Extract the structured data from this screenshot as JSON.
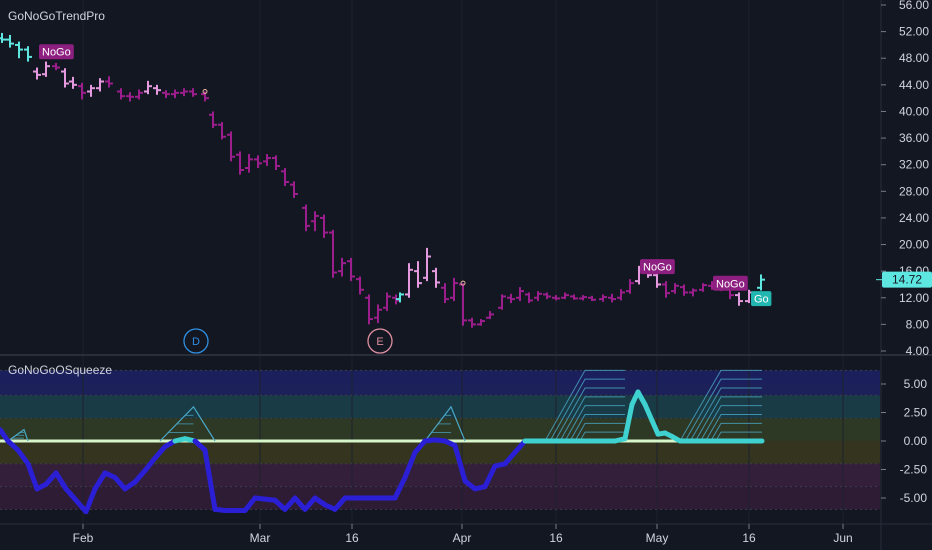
{
  "colors": {
    "background": "#131722",
    "grid": "#2a2e39",
    "axis_text": "#d1d4dc",
    "strong_nogo": "#9b1e8c",
    "weak_nogo": "#e59ae0",
    "nogo_tag": "#8c1f80",
    "go_tag": "#21b6b0",
    "price_tag": "#5ee6e0",
    "squeeze_line": "#2b1fd6",
    "squeeze_zero": "#d6f5c8",
    "squeeze_wave": "#3fd0d0"
  },
  "price_chart": {
    "title": "GoNoGoTrendPro",
    "y_ticks": [
      "56.00",
      "52.00",
      "48.00",
      "44.00",
      "40.00",
      "36.00",
      "32.00",
      "28.00",
      "24.00",
      "20.00",
      "16.00",
      "12.00",
      "8.00",
      "4.00"
    ],
    "current_price": "14.72",
    "tags": [
      {
        "text": "NoGo",
        "x": 40,
        "price": 48.9,
        "type": "nogo"
      },
      {
        "text": "NoGo",
        "x": 641,
        "price": 16.6,
        "type": "nogo"
      },
      {
        "text": "NoGo",
        "x": 714,
        "price": 14.1,
        "type": "nogo"
      },
      {
        "text": "Go",
        "x": 752,
        "price": 11.8,
        "type": "go"
      }
    ],
    "event_markers": [
      {
        "text": "D",
        "x": 196,
        "color": "#2f8fe0"
      },
      {
        "text": "E",
        "x": 380,
        "color": "#e08fa0"
      }
    ]
  },
  "oscillator": {
    "title": "GoNoGoOSqueeze",
    "y_ticks": [
      "5.00",
      "2.50",
      "0.00",
      "-2.50",
      "-5.00"
    ],
    "ylim": [
      -7,
      6.2
    ]
  },
  "x_axis": {
    "labels": [
      {
        "text": "Feb",
        "x": 83
      },
      {
        "text": "Mar",
        "x": 260
      },
      {
        "text": "16",
        "x": 352
      },
      {
        "text": "Apr",
        "x": 462
      },
      {
        "text": "16",
        "x": 556
      },
      {
        "text": "May",
        "x": 657
      },
      {
        "text": "16",
        "x": 749
      },
      {
        "text": "Jun",
        "x": 843
      }
    ]
  },
  "chart_data": [
    {
      "type": "ohlc",
      "title": "GoNoGoTrendPro",
      "ylim": [
        4,
        57
      ],
      "bars": [
        {
          "x": 2,
          "o": 51,
          "h": 51.8,
          "l": 50.3,
          "c": 50.8,
          "g": "go"
        },
        {
          "x": 10,
          "o": 50.8,
          "h": 51.5,
          "l": 49.6,
          "c": 50.2,
          "g": "go"
        },
        {
          "x": 19,
          "o": 50,
          "h": 50.5,
          "l": 48,
          "c": 49.3,
          "g": "go"
        },
        {
          "x": 28,
          "o": 49.3,
          "h": 49.8,
          "l": 47.5,
          "c": 48.2,
          "g": "go"
        },
        {
          "x": 37,
          "o": 46,
          "h": 46.6,
          "l": 44.8,
          "c": 45.5,
          "g": "weak"
        },
        {
          "x": 46,
          "o": 45.6,
          "h": 47.5,
          "l": 45.2,
          "c": 46.8,
          "g": "weak"
        },
        {
          "x": 56,
          "o": 46.8,
          "h": 47.3,
          "l": 46.2,
          "c": 46.6,
          "g": "nogo"
        },
        {
          "x": 65,
          "o": 46,
          "h": 46.5,
          "l": 43.6,
          "c": 44.2,
          "g": "weak"
        },
        {
          "x": 73,
          "o": 44.5,
          "h": 45.2,
          "l": 43.4,
          "c": 44,
          "g": "weak"
        },
        {
          "x": 82,
          "o": 43.8,
          "h": 44.3,
          "l": 41.8,
          "c": 42.8,
          "g": "nogo"
        },
        {
          "x": 91,
          "o": 43,
          "h": 44,
          "l": 42.2,
          "c": 43.5,
          "g": "weak"
        },
        {
          "x": 100,
          "o": 43.5,
          "h": 45,
          "l": 43,
          "c": 44.5,
          "g": "weak"
        },
        {
          "x": 109,
          "o": 44.5,
          "h": 45.3,
          "l": 43.6,
          "c": 44.2,
          "g": "nogo"
        },
        {
          "x": 121,
          "o": 43,
          "h": 43.5,
          "l": 41.8,
          "c": 42.3,
          "g": "nogo"
        },
        {
          "x": 130,
          "o": 42.3,
          "h": 42.9,
          "l": 41.5,
          "c": 42.2,
          "g": "nogo"
        },
        {
          "x": 139,
          "o": 42.2,
          "h": 43.3,
          "l": 41.8,
          "c": 42.8,
          "g": "nogo"
        },
        {
          "x": 148,
          "o": 43,
          "h": 44.6,
          "l": 42.6,
          "c": 43.8,
          "g": "weak"
        },
        {
          "x": 157,
          "o": 43.5,
          "h": 44,
          "l": 42.5,
          "c": 43.2,
          "g": "weak"
        },
        {
          "x": 166,
          "o": 42.8,
          "h": 43.2,
          "l": 42,
          "c": 42.6,
          "g": "nogo"
        },
        {
          "x": 175,
          "o": 42.6,
          "h": 43.3,
          "l": 42,
          "c": 42.8,
          "g": "nogo"
        },
        {
          "x": 184,
          "o": 42.8,
          "h": 43.5,
          "l": 42.3,
          "c": 43,
          "g": "nogo"
        },
        {
          "x": 193,
          "o": 43,
          "h": 43.5,
          "l": 42.2,
          "c": 42.6,
          "g": "nogo"
        },
        {
          "x": 205,
          "o": 42.6,
          "h": 43,
          "l": 41.5,
          "c": 42,
          "g": "nogo"
        },
        {
          "x": 213,
          "o": 39.5,
          "h": 40,
          "l": 37.5,
          "c": 38,
          "g": "nogo"
        },
        {
          "x": 222,
          "o": 38,
          "h": 38.4,
          "l": 35.8,
          "c": 36.2,
          "g": "nogo"
        },
        {
          "x": 231,
          "o": 36.5,
          "h": 37,
          "l": 32.5,
          "c": 33.2,
          "g": "nogo"
        },
        {
          "x": 240,
          "o": 33.5,
          "h": 34,
          "l": 30.5,
          "c": 31.2,
          "g": "nogo"
        },
        {
          "x": 249,
          "o": 31.5,
          "h": 33.6,
          "l": 30.8,
          "c": 32.8,
          "g": "nogo"
        },
        {
          "x": 258,
          "o": 32.8,
          "h": 33.4,
          "l": 31.5,
          "c": 32.2,
          "g": "nogo"
        },
        {
          "x": 267,
          "o": 32.5,
          "h": 33.6,
          "l": 31.8,
          "c": 33,
          "g": "nogo"
        },
        {
          "x": 276,
          "o": 33,
          "h": 33.4,
          "l": 31.2,
          "c": 31.8,
          "g": "nogo"
        },
        {
          "x": 285,
          "o": 31,
          "h": 31.5,
          "l": 28.8,
          "c": 29.4,
          "g": "nogo"
        },
        {
          "x": 294,
          "o": 29,
          "h": 29.5,
          "l": 27,
          "c": 27.6,
          "g": "nogo"
        },
        {
          "x": 306,
          "o": 25.5,
          "h": 26,
          "l": 22,
          "c": 22.8,
          "g": "nogo"
        },
        {
          "x": 315,
          "o": 23.5,
          "h": 25,
          "l": 22,
          "c": 24.3,
          "g": "nogo"
        },
        {
          "x": 324,
          "o": 24,
          "h": 24.5,
          "l": 21,
          "c": 21.8,
          "g": "nogo"
        },
        {
          "x": 333,
          "o": 21.8,
          "h": 22.2,
          "l": 15,
          "c": 15.8,
          "g": "nogo"
        },
        {
          "x": 342,
          "o": 16,
          "h": 18,
          "l": 15.2,
          "c": 17.2,
          "g": "nogo"
        },
        {
          "x": 351,
          "o": 17.5,
          "h": 18,
          "l": 14.5,
          "c": 15.2,
          "g": "nogo"
        },
        {
          "x": 360,
          "o": 14.8,
          "h": 15.2,
          "l": 12.5,
          "c": 13.2,
          "g": "nogo"
        },
        {
          "x": 369,
          "o": 12,
          "h": 12.5,
          "l": 8,
          "c": 8.8,
          "g": "nogo"
        },
        {
          "x": 378,
          "o": 9,
          "h": 11,
          "l": 8.2,
          "c": 10.2,
          "g": "nogo"
        },
        {
          "x": 387,
          "o": 10.5,
          "h": 12.8,
          "l": 10,
          "c": 12.2,
          "g": "nogo"
        },
        {
          "x": 396,
          "o": 12,
          "h": 12.5,
          "l": 11,
          "c": 11.6,
          "g": "nogo"
        },
        {
          "x": 400,
          "o": 11.8,
          "h": 12.8,
          "l": 11.3,
          "c": 12.5,
          "g": "go"
        },
        {
          "x": 409,
          "o": 12.5,
          "h": 17.2,
          "l": 12,
          "c": 16.2,
          "g": "weak"
        },
        {
          "x": 418,
          "o": 16,
          "h": 17.5,
          "l": 13.5,
          "c": 14.2,
          "g": "weak"
        },
        {
          "x": 427,
          "o": 15,
          "h": 19.5,
          "l": 14.5,
          "c": 18.2,
          "g": "weak"
        },
        {
          "x": 436,
          "o": 16,
          "h": 16.5,
          "l": 13.5,
          "c": 14.3,
          "g": "weak"
        },
        {
          "x": 445,
          "o": 13.5,
          "h": 14.2,
          "l": 11.2,
          "c": 11.8,
          "g": "nogo"
        },
        {
          "x": 454,
          "o": 12,
          "h": 15,
          "l": 11.5,
          "c": 14.2,
          "g": "nogo"
        },
        {
          "x": 463,
          "o": 14,
          "h": 14.2,
          "l": 7.8,
          "c": 8.6,
          "g": "nogo"
        },
        {
          "x": 472,
          "o": 8.6,
          "h": 9,
          "l": 7.5,
          "c": 8,
          "g": "nogo"
        },
        {
          "x": 481,
          "o": 8,
          "h": 8.8,
          "l": 7.8,
          "c": 8.5,
          "g": "nogo"
        },
        {
          "x": 490,
          "o": 9,
          "h": 10,
          "l": 8.8,
          "c": 9.5,
          "g": "nogo"
        },
        {
          "x": 502,
          "o": 10.5,
          "h": 12.5,
          "l": 10.2,
          "c": 12.2,
          "g": "nogo"
        },
        {
          "x": 511,
          "o": 12,
          "h": 12.6,
          "l": 11.2,
          "c": 11.8,
          "g": "nogo"
        },
        {
          "x": 520,
          "o": 12,
          "h": 13.6,
          "l": 11.5,
          "c": 13,
          "g": "nogo"
        },
        {
          "x": 529,
          "o": 12.5,
          "h": 12.8,
          "l": 11.2,
          "c": 11.6,
          "g": "nogo"
        },
        {
          "x": 538,
          "o": 12,
          "h": 13,
          "l": 11.5,
          "c": 12.6,
          "g": "nogo"
        },
        {
          "x": 547,
          "o": 12.5,
          "h": 12.8,
          "l": 11.8,
          "c": 12.2,
          "g": "nogo"
        },
        {
          "x": 556,
          "o": 12,
          "h": 12.4,
          "l": 11.6,
          "c": 11.9,
          "g": "nogo"
        },
        {
          "x": 565,
          "o": 12,
          "h": 12.8,
          "l": 11.8,
          "c": 12.4,
          "g": "nogo"
        },
        {
          "x": 574,
          "o": 12.2,
          "h": 12.5,
          "l": 11.7,
          "c": 11.9,
          "g": "nogo"
        },
        {
          "x": 583,
          "o": 11.9,
          "h": 12.4,
          "l": 11.6,
          "c": 12.1,
          "g": "nogo"
        },
        {
          "x": 592,
          "o": 12,
          "h": 12.3,
          "l": 11.5,
          "c": 11.7,
          "g": "nogo"
        },
        {
          "x": 603,
          "o": 11.8,
          "h": 12.5,
          "l": 11.4,
          "c": 12.1,
          "g": "nogo"
        },
        {
          "x": 612,
          "o": 12,
          "h": 12.6,
          "l": 11.3,
          "c": 11.8,
          "g": "nogo"
        },
        {
          "x": 621,
          "o": 12,
          "h": 13.3,
          "l": 11.6,
          "c": 12.8,
          "g": "nogo"
        },
        {
          "x": 630,
          "o": 13,
          "h": 14.8,
          "l": 12.6,
          "c": 14.2,
          "g": "nogo"
        },
        {
          "x": 639,
          "o": 14.5,
          "h": 16.8,
          "l": 14,
          "c": 16.2,
          "g": "weak"
        },
        {
          "x": 648,
          "o": 16.5,
          "h": 16.9,
          "l": 15,
          "c": 15.4,
          "g": "weak"
        },
        {
          "x": 657,
          "o": 15.4,
          "h": 15.9,
          "l": 13.5,
          "c": 14,
          "g": "weak"
        },
        {
          "x": 666,
          "o": 14,
          "h": 14.5,
          "l": 12,
          "c": 12.7,
          "g": "nogo"
        },
        {
          "x": 675,
          "o": 13,
          "h": 14.2,
          "l": 12.6,
          "c": 13.8,
          "g": "nogo"
        },
        {
          "x": 684,
          "o": 13.6,
          "h": 14,
          "l": 12.3,
          "c": 12.8,
          "g": "nogo"
        },
        {
          "x": 693,
          "o": 12.8,
          "h": 13.4,
          "l": 12.2,
          "c": 13.1,
          "g": "nogo"
        },
        {
          "x": 703,
          "o": 13.2,
          "h": 14.2,
          "l": 12.9,
          "c": 13.9,
          "g": "nogo"
        },
        {
          "x": 712,
          "o": 13.8,
          "h": 14.5,
          "l": 13.2,
          "c": 13.6,
          "g": "nogo"
        },
        {
          "x": 721,
          "o": 13.6,
          "h": 14.5,
          "l": 13,
          "c": 13.3,
          "g": "nogo"
        },
        {
          "x": 730,
          "o": 13.3,
          "h": 13.7,
          "l": 11.8,
          "c": 12.4,
          "g": "nogo"
        },
        {
          "x": 739,
          "o": 12.4,
          "h": 12.8,
          "l": 10.8,
          "c": 11.5,
          "g": "weak"
        },
        {
          "x": 749,
          "o": 11.5,
          "h": 13.2,
          "l": 11.2,
          "c": 12.8,
          "g": "weak"
        },
        {
          "x": 761,
          "o": 13.5,
          "h": 15.5,
          "l": 13.1,
          "c": 14.72,
          "g": "go"
        }
      ]
    },
    {
      "type": "line",
      "title": "GoNoGoOSqueeze",
      "ylim": [
        -7,
        6.2
      ],
      "series": [
        {
          "values": [
            [
              0,
              1
            ],
            [
              8,
              0
            ],
            [
              18,
              -0.8
            ],
            [
              28,
              -2
            ],
            [
              37,
              -4.2
            ],
            [
              46,
              -3.8
            ],
            [
              56,
              -2.8
            ],
            [
              66,
              -4.2
            ],
            [
              76,
              -5.2
            ],
            [
              86,
              -6.2
            ],
            [
              95,
              -4.2
            ],
            [
              105,
              -2.8
            ],
            [
              115,
              -3.2
            ],
            [
              125,
              -4.2
            ],
            [
              135,
              -3.6
            ],
            [
              145,
              -2.6
            ],
            [
              155,
              -1.5
            ],
            [
              165,
              -0.5
            ],
            [
              175,
              0
            ],
            [
              185,
              0.2
            ],
            [
              195,
              0
            ],
            [
              205,
              -0.8
            ],
            [
              215,
              -6
            ],
            [
              225,
              -6.1
            ],
            [
              235,
              -6.1
            ],
            [
              245,
              -6.1
            ],
            [
              255,
              -5
            ],
            [
              265,
              -5.1
            ],
            [
              275,
              -5.2
            ],
            [
              285,
              -6
            ],
            [
              295,
              -5
            ],
            [
              305,
              -6
            ],
            [
              315,
              -5
            ],
            [
              325,
              -5.6
            ],
            [
              335,
              -6
            ],
            [
              345,
              -5
            ],
            [
              355,
              -5
            ],
            [
              365,
              -5
            ],
            [
              375,
              -5
            ],
            [
              385,
              -5
            ],
            [
              395,
              -5
            ],
            [
              405,
              -3.2
            ],
            [
              415,
              -1
            ],
            [
              425,
              0
            ],
            [
              435,
              0.1
            ],
            [
              445,
              0
            ],
            [
              455,
              -0.4
            ],
            [
              465,
              -3.5
            ],
            [
              475,
              -4.2
            ],
            [
              485,
              -4
            ],
            [
              495,
              -2.2
            ],
            [
              505,
              -2
            ],
            [
              515,
              -1
            ],
            [
              525,
              0
            ],
            [
              535,
              0
            ],
            [
              545,
              0
            ],
            [
              555,
              0
            ],
            [
              565,
              0
            ],
            [
              575,
              0
            ],
            [
              585,
              0
            ],
            [
              595,
              0
            ],
            [
              605,
              0
            ],
            [
              615,
              0
            ],
            [
              625,
              0.2
            ],
            [
              632,
              3.2
            ],
            [
              638,
              4.3
            ],
            [
              645,
              3.2
            ],
            [
              652,
              1.8
            ],
            [
              658,
              0.6
            ],
            [
              665,
              0.7
            ],
            [
              672,
              0.4
            ],
            [
              680,
              0
            ],
            [
              700,
              0
            ],
            [
              720,
              0
            ],
            [
              740,
              0
            ],
            [
              762,
              0
            ]
          ]
        }
      ]
    }
  ]
}
